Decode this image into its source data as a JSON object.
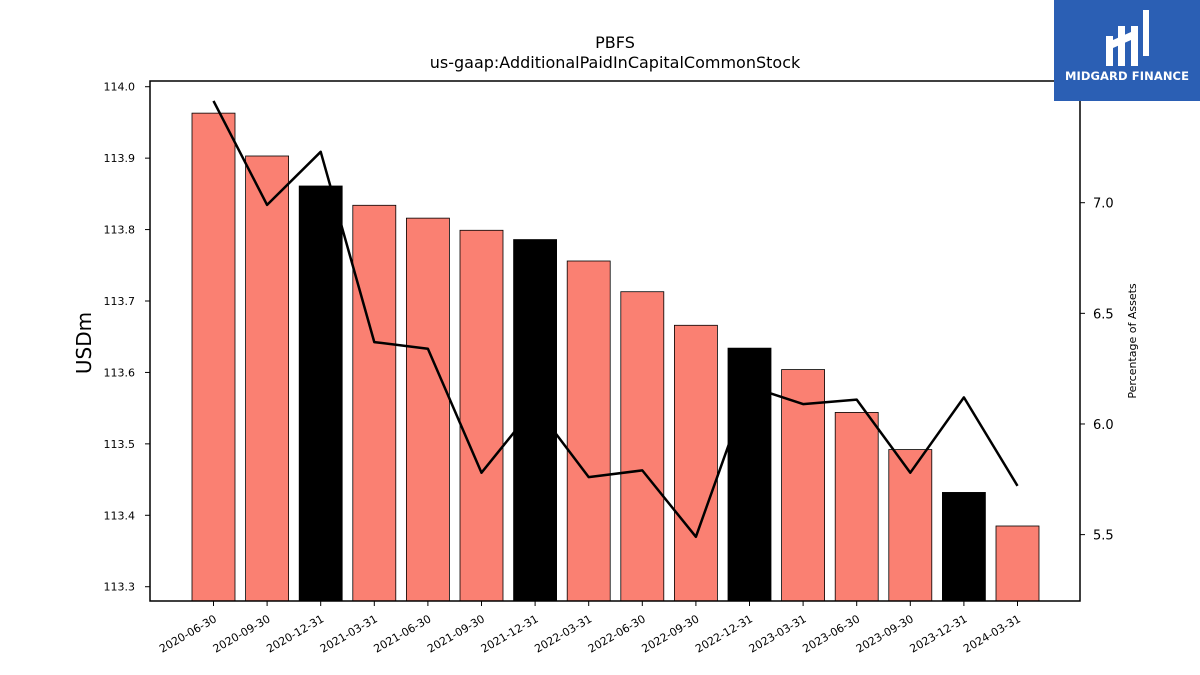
{
  "logo": {
    "text": "MIDGARD FINANCE",
    "bg_color": "#2b5fb4"
  },
  "chart_data": {
    "type": "bar",
    "title": "PBFS",
    "subtitle": "us-gaap:AdditionalPaidInCapitalCommonStock",
    "ylabel": "USDm",
    "y2label": "Percentage of Assets",
    "ylim": [
      113.28,
      114.008
    ],
    "y2lim": [
      5.2,
      7.55
    ],
    "yticks": [
      "113.3",
      "113.4",
      "113.5",
      "113.6",
      "113.7",
      "113.8",
      "113.9",
      "114.0"
    ],
    "y2ticks": [
      "5.5",
      "6.0",
      "6.5",
      "7.0"
    ],
    "categories": [
      "2020-06-30",
      "2020-09-30",
      "2020-12-31",
      "2021-03-31",
      "2021-06-30",
      "2021-09-30",
      "2021-12-31",
      "2022-03-31",
      "2022-06-30",
      "2022-09-30",
      "2022-12-31",
      "2023-03-31",
      "2023-06-30",
      "2023-09-30",
      "2023-12-31",
      "2024-03-31"
    ],
    "series": [
      {
        "axis": "left",
        "kind": "bar",
        "values": [
          113.963,
          113.903,
          113.861,
          113.834,
          113.816,
          113.799,
          113.786,
          113.756,
          113.713,
          113.666,
          113.634,
          113.604,
          113.544,
          113.492,
          113.432,
          113.385
        ],
        "colors": [
          "#fa8072",
          "#fa8072",
          "#000000",
          "#fa8072",
          "#fa8072",
          "#fa8072",
          "#000000",
          "#fa8072",
          "#fa8072",
          "#fa8072",
          "#000000",
          "#fa8072",
          "#fa8072",
          "#fa8072",
          "#000000",
          "#fa8072"
        ]
      },
      {
        "axis": "right",
        "kind": "line",
        "color": "#000000",
        "values": [
          7.46,
          6.99,
          7.23,
          6.37,
          6.34,
          5.78,
          6.08,
          5.76,
          5.79,
          5.49,
          6.17,
          6.09,
          6.11,
          5.78,
          6.12,
          5.72
        ]
      }
    ]
  }
}
